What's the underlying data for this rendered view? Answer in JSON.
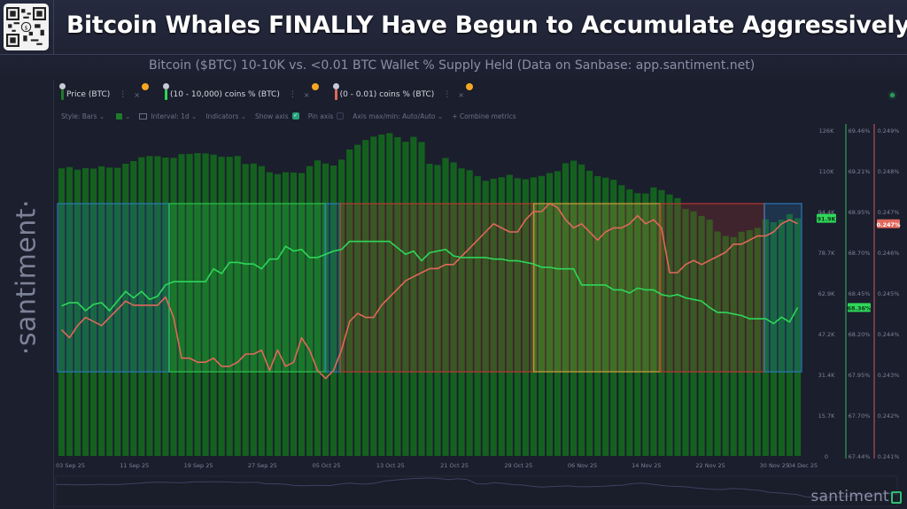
{
  "header": {
    "title": "Bitcoin Whales FINALLY Have Begun to Accumulate Aggressively",
    "subtitle": "Bitcoin ($BTC) 10-10K vs. <0.01 BTC Wallet % Supply Held (Data on Sanbase: app.santiment.net)",
    "side_watermark": "·santiment·",
    "bottom_watermark": "santiment"
  },
  "legend": {
    "items": [
      {
        "label": "Price (BTC)",
        "color": "#1e7a2a"
      },
      {
        "label": "(10 - 10,000) coins % (BTC)",
        "color": "#2fd65a"
      },
      {
        "label": "(0 - 0.01) coins % (BTC)",
        "color": "#e0685a"
      }
    ],
    "more_icon": "⋮",
    "close_icon": "×"
  },
  "toolbar": {
    "style": "Style: Bars",
    "interval": "Interval: 1d",
    "indicators": "Indicators",
    "show_axis": "Show axis",
    "pin_axis": "Pin axis",
    "axis_maxmin": "Axis max/min: Auto/Auto",
    "combine": "Combine metrics"
  },
  "chart_data": {
    "type": "bar+line",
    "title": "Bitcoin ($BTC) 10-10K vs. <0.01 BTC Wallet % Supply Held",
    "xlabel": "",
    "x_ticks": [
      "03 Sep 25",
      "11 Sep 25",
      "19 Sep 25",
      "27 Sep 25",
      "05 Oct 25",
      "13 Oct 25",
      "21 Oct 25",
      "29 Oct 25",
      "06 Nov 25",
      "14 Nov 25",
      "22 Nov 25",
      "30 Nov 25",
      "04 Dec 25"
    ],
    "x_range": [
      "03 Sep 25",
      "04 Dec 25"
    ],
    "axes": {
      "price": {
        "ticks": [
          "126K",
          "110K",
          "94.4K",
          "78.7K",
          "62.9K",
          "47.2K",
          "31.4K",
          "15.7K",
          "0"
        ],
        "ylim": [
          0,
          126000
        ],
        "current_label": "91.9K",
        "current_color": "#2fd65a"
      },
      "whales": {
        "ticks": [
          "69.46%",
          "69.21%",
          "68.95%",
          "68.70%",
          "68.45%",
          "68.20%",
          "67.95%",
          "67.70%",
          "67.44%"
        ],
        "ylim": [
          67.44,
          69.46
        ],
        "current_label": "68.36%",
        "current_color": "#2fd65a"
      },
      "retail": {
        "ticks": [
          "0.249%",
          "0.248%",
          "0.247%",
          "0.246%",
          "0.245%",
          "0.244%",
          "0.243%",
          "0.242%",
          "0.241%"
        ],
        "ylim": [
          0.241,
          0.249
        ],
        "current_label": "0.247%",
        "current_color": "#e0685a"
      }
    },
    "series": [
      {
        "name": "Price (BTC)",
        "type": "bar",
        "color": "#1e7a2a",
        "axis": "price",
        "values": [
          111200,
          111700,
          110700,
          111300,
          111100,
          112000,
          111500,
          111400,
          113000,
          114000,
          115500,
          116000,
          115900,
          115400,
          115300,
          116700,
          116800,
          117100,
          117000,
          116500,
          115700,
          115700,
          116000,
          112900,
          113100,
          112100,
          109700,
          109000,
          109700,
          109600,
          109400,
          112100,
          114300,
          113100,
          112300,
          114600,
          118500,
          120300,
          122200,
          123500,
          124300,
          124800,
          123300,
          121500,
          123400,
          121400,
          113000,
          112500,
          115200,
          113500,
          111200,
          110500,
          108200,
          106400,
          107200,
          107800,
          108700,
          107400,
          107000,
          107700,
          108300,
          109400,
          110100,
          113200,
          114200,
          112700,
          110300,
          108200,
          107600,
          106800,
          104700,
          103100,
          101600,
          101500,
          103800,
          102800,
          101100,
          99700,
          95500,
          94600,
          92800,
          91400,
          86800,
          85100,
          84600,
          86700,
          87300,
          88200,
          91500,
          90400,
          91400,
          93500,
          91900
        ]
      },
      {
        "name": "(10 - 10,000) coins % (BTC)",
        "type": "line",
        "color": "#2fd65a",
        "axis": "whales",
        "values": [
          68.37,
          68.39,
          68.39,
          68.34,
          68.38,
          68.39,
          68.34,
          68.4,
          68.46,
          68.42,
          68.46,
          68.41,
          68.43,
          68.5,
          68.52,
          68.52,
          68.52,
          68.52,
          68.52,
          68.6,
          68.57,
          68.64,
          68.64,
          68.63,
          68.63,
          68.6,
          68.66,
          68.66,
          68.74,
          68.71,
          68.72,
          68.67,
          68.67,
          68.69,
          68.71,
          68.72,
          68.77,
          68.77,
          68.77,
          68.77,
          68.77,
          68.77,
          68.73,
          68.69,
          68.71,
          68.65,
          68.7,
          68.71,
          68.72,
          68.68,
          68.67,
          68.67,
          68.67,
          68.67,
          68.66,
          68.66,
          68.65,
          68.65,
          68.64,
          68.63,
          68.61,
          68.61,
          68.6,
          68.6,
          68.6,
          68.5,
          68.5,
          68.5,
          68.5,
          68.47,
          68.47,
          68.45,
          68.48,
          68.47,
          68.47,
          68.44,
          68.43,
          68.44,
          68.42,
          68.41,
          68.4,
          68.36,
          68.33,
          68.33,
          68.32,
          68.31,
          68.29,
          68.29,
          68.29,
          68.26,
          68.3,
          68.27,
          68.36
        ]
      },
      {
        "name": "(0 - 0.01) coins % (BTC)",
        "type": "line",
        "color": "#e0685a",
        "axis": "retail",
        "values": [
          0.2441,
          0.2439,
          0.2442,
          0.2444,
          0.2443,
          0.2442,
          0.2444,
          0.2446,
          0.2448,
          0.2447,
          0.2447,
          0.2447,
          0.2447,
          0.2449,
          0.2444,
          0.2434,
          0.2434,
          0.2433,
          0.2433,
          0.2434,
          0.2432,
          0.2432,
          0.2433,
          0.2435,
          0.2435,
          0.2436,
          0.2431,
          0.2436,
          0.2432,
          0.2433,
          0.2439,
          0.2436,
          0.2431,
          0.2429,
          0.2431,
          0.2436,
          0.2443,
          0.2445,
          0.2444,
          0.2444,
          0.2447,
          0.2449,
          0.2451,
          0.2453,
          0.2454,
          0.2455,
          0.2456,
          0.2456,
          0.2457,
          0.2457,
          0.2459,
          0.2461,
          0.2463,
          0.2465,
          0.2467,
          0.2466,
          0.2465,
          0.2465,
          0.2468,
          0.247,
          0.247,
          0.2472,
          0.2471,
          0.2468,
          0.2466,
          0.2467,
          0.2465,
          0.2463,
          0.2465,
          0.2466,
          0.2466,
          0.2467,
          0.2469,
          0.2467,
          0.2468,
          0.2466,
          0.2455,
          0.2455,
          0.2457,
          0.2458,
          0.2457,
          0.2458,
          0.2459,
          0.246,
          0.2462,
          0.2462,
          0.2463,
          0.2464,
          0.2464,
          0.2465,
          0.2467,
          0.2468,
          0.2467
        ]
      }
    ],
    "highlight_zones": [
      {
        "start": 0,
        "end": 15,
        "color": "#2a7fbf"
      },
      {
        "start": 15,
        "end": 36,
        "color": "#2fc94f"
      },
      {
        "start": 36,
        "end": 38,
        "color": "#2a7fbf"
      },
      {
        "start": 38,
        "end": 64,
        "color": "#c03a30"
      },
      {
        "start": 64,
        "end": 81,
        "color": "#d9a23a"
      },
      {
        "start": 81,
        "end": 95,
        "color": "#c03a30"
      },
      {
        "start": 95,
        "end": 100,
        "color": "#2a7fbf"
      }
    ],
    "legend_position": "top-left",
    "grid": false
  }
}
